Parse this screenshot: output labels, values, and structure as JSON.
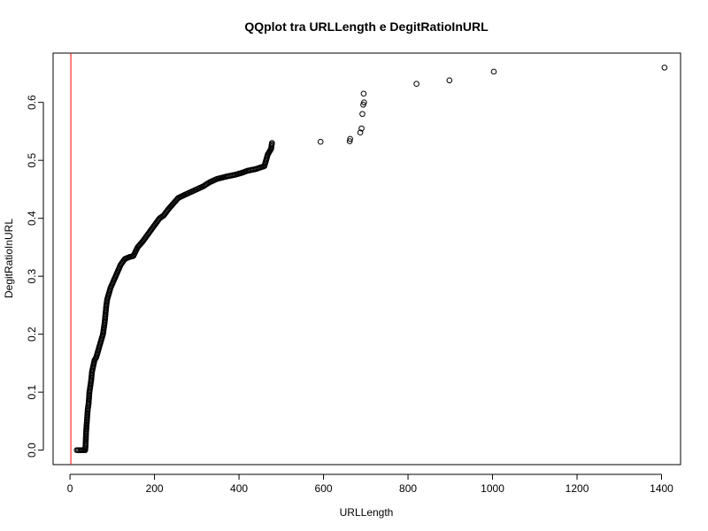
{
  "chart_data": {
    "type": "scatter",
    "title": "QQplot tra URLLength e DegitRatioInURL",
    "xlabel": "URLLength",
    "ylabel": "DegitRatioInURL",
    "xlim": [
      -40,
      1445
    ],
    "ylim": [
      -0.025,
      0.685
    ],
    "xticks": [
      0,
      200,
      400,
      600,
      800,
      1000,
      1200,
      1400
    ],
    "xtick_labels": [
      "0",
      "200",
      "400",
      "600",
      "800",
      "1000",
      "1200",
      "1400"
    ],
    "yticks": [
      0.0,
      0.1,
      0.2,
      0.3,
      0.4,
      0.5,
      0.6
    ],
    "ytick_labels": [
      "0.0",
      "0.1",
      "0.2",
      "0.3",
      "0.4",
      "0.5",
      "0.6"
    ],
    "vline": {
      "x": 2,
      "color": "#ff0000"
    },
    "curve_anchors": [
      [
        16,
        0.0
      ],
      [
        22,
        0.0
      ],
      [
        28,
        0.0
      ],
      [
        33,
        0.0
      ],
      [
        36,
        0.0
      ],
      [
        37,
        0.01
      ],
      [
        38,
        0.03
      ],
      [
        40,
        0.05
      ],
      [
        42,
        0.07
      ],
      [
        44,
        0.08
      ],
      [
        46,
        0.1
      ],
      [
        48,
        0.11
      ],
      [
        50,
        0.12
      ],
      [
        52,
        0.135
      ],
      [
        55,
        0.145
      ],
      [
        58,
        0.155
      ],
      [
        62,
        0.16
      ],
      [
        66,
        0.17
      ],
      [
        70,
        0.18
      ],
      [
        74,
        0.19
      ],
      [
        78,
        0.2
      ],
      [
        80,
        0.21
      ],
      [
        82,
        0.22
      ],
      [
        84,
        0.235
      ],
      [
        86,
        0.25
      ],
      [
        88,
        0.26
      ],
      [
        92,
        0.27
      ],
      [
        96,
        0.28
      ],
      [
        102,
        0.29
      ],
      [
        108,
        0.3
      ],
      [
        114,
        0.31
      ],
      [
        120,
        0.32
      ],
      [
        130,
        0.33
      ],
      [
        140,
        0.333
      ],
      [
        150,
        0.335
      ],
      [
        160,
        0.35
      ],
      [
        172,
        0.36
      ],
      [
        182,
        0.37
      ],
      [
        192,
        0.38
      ],
      [
        202,
        0.39
      ],
      [
        212,
        0.4
      ],
      [
        222,
        0.405
      ],
      [
        232,
        0.415
      ],
      [
        244,
        0.425
      ],
      [
        256,
        0.435
      ],
      [
        270,
        0.44
      ],
      [
        285,
        0.445
      ],
      [
        300,
        0.45
      ],
      [
        315,
        0.455
      ],
      [
        330,
        0.462
      ],
      [
        348,
        0.468
      ],
      [
        370,
        0.472
      ],
      [
        390,
        0.475
      ],
      [
        405,
        0.478
      ],
      [
        420,
        0.482
      ],
      [
        440,
        0.485
      ],
      [
        460,
        0.49
      ],
      [
        464,
        0.5
      ],
      [
        468,
        0.51
      ],
      [
        472,
        0.515
      ],
      [
        476,
        0.52
      ],
      [
        478,
        0.53
      ]
    ],
    "points": [
      [
        593,
        0.532
      ],
      [
        662,
        0.533
      ],
      [
        663,
        0.537
      ],
      [
        687,
        0.548
      ],
      [
        690,
        0.555
      ],
      [
        692,
        0.58
      ],
      [
        694,
        0.596
      ],
      [
        696,
        0.6
      ],
      [
        695,
        0.615
      ],
      [
        820,
        0.632
      ],
      [
        898,
        0.638
      ],
      [
        1003,
        0.653
      ],
      [
        1407,
        0.66
      ]
    ]
  }
}
